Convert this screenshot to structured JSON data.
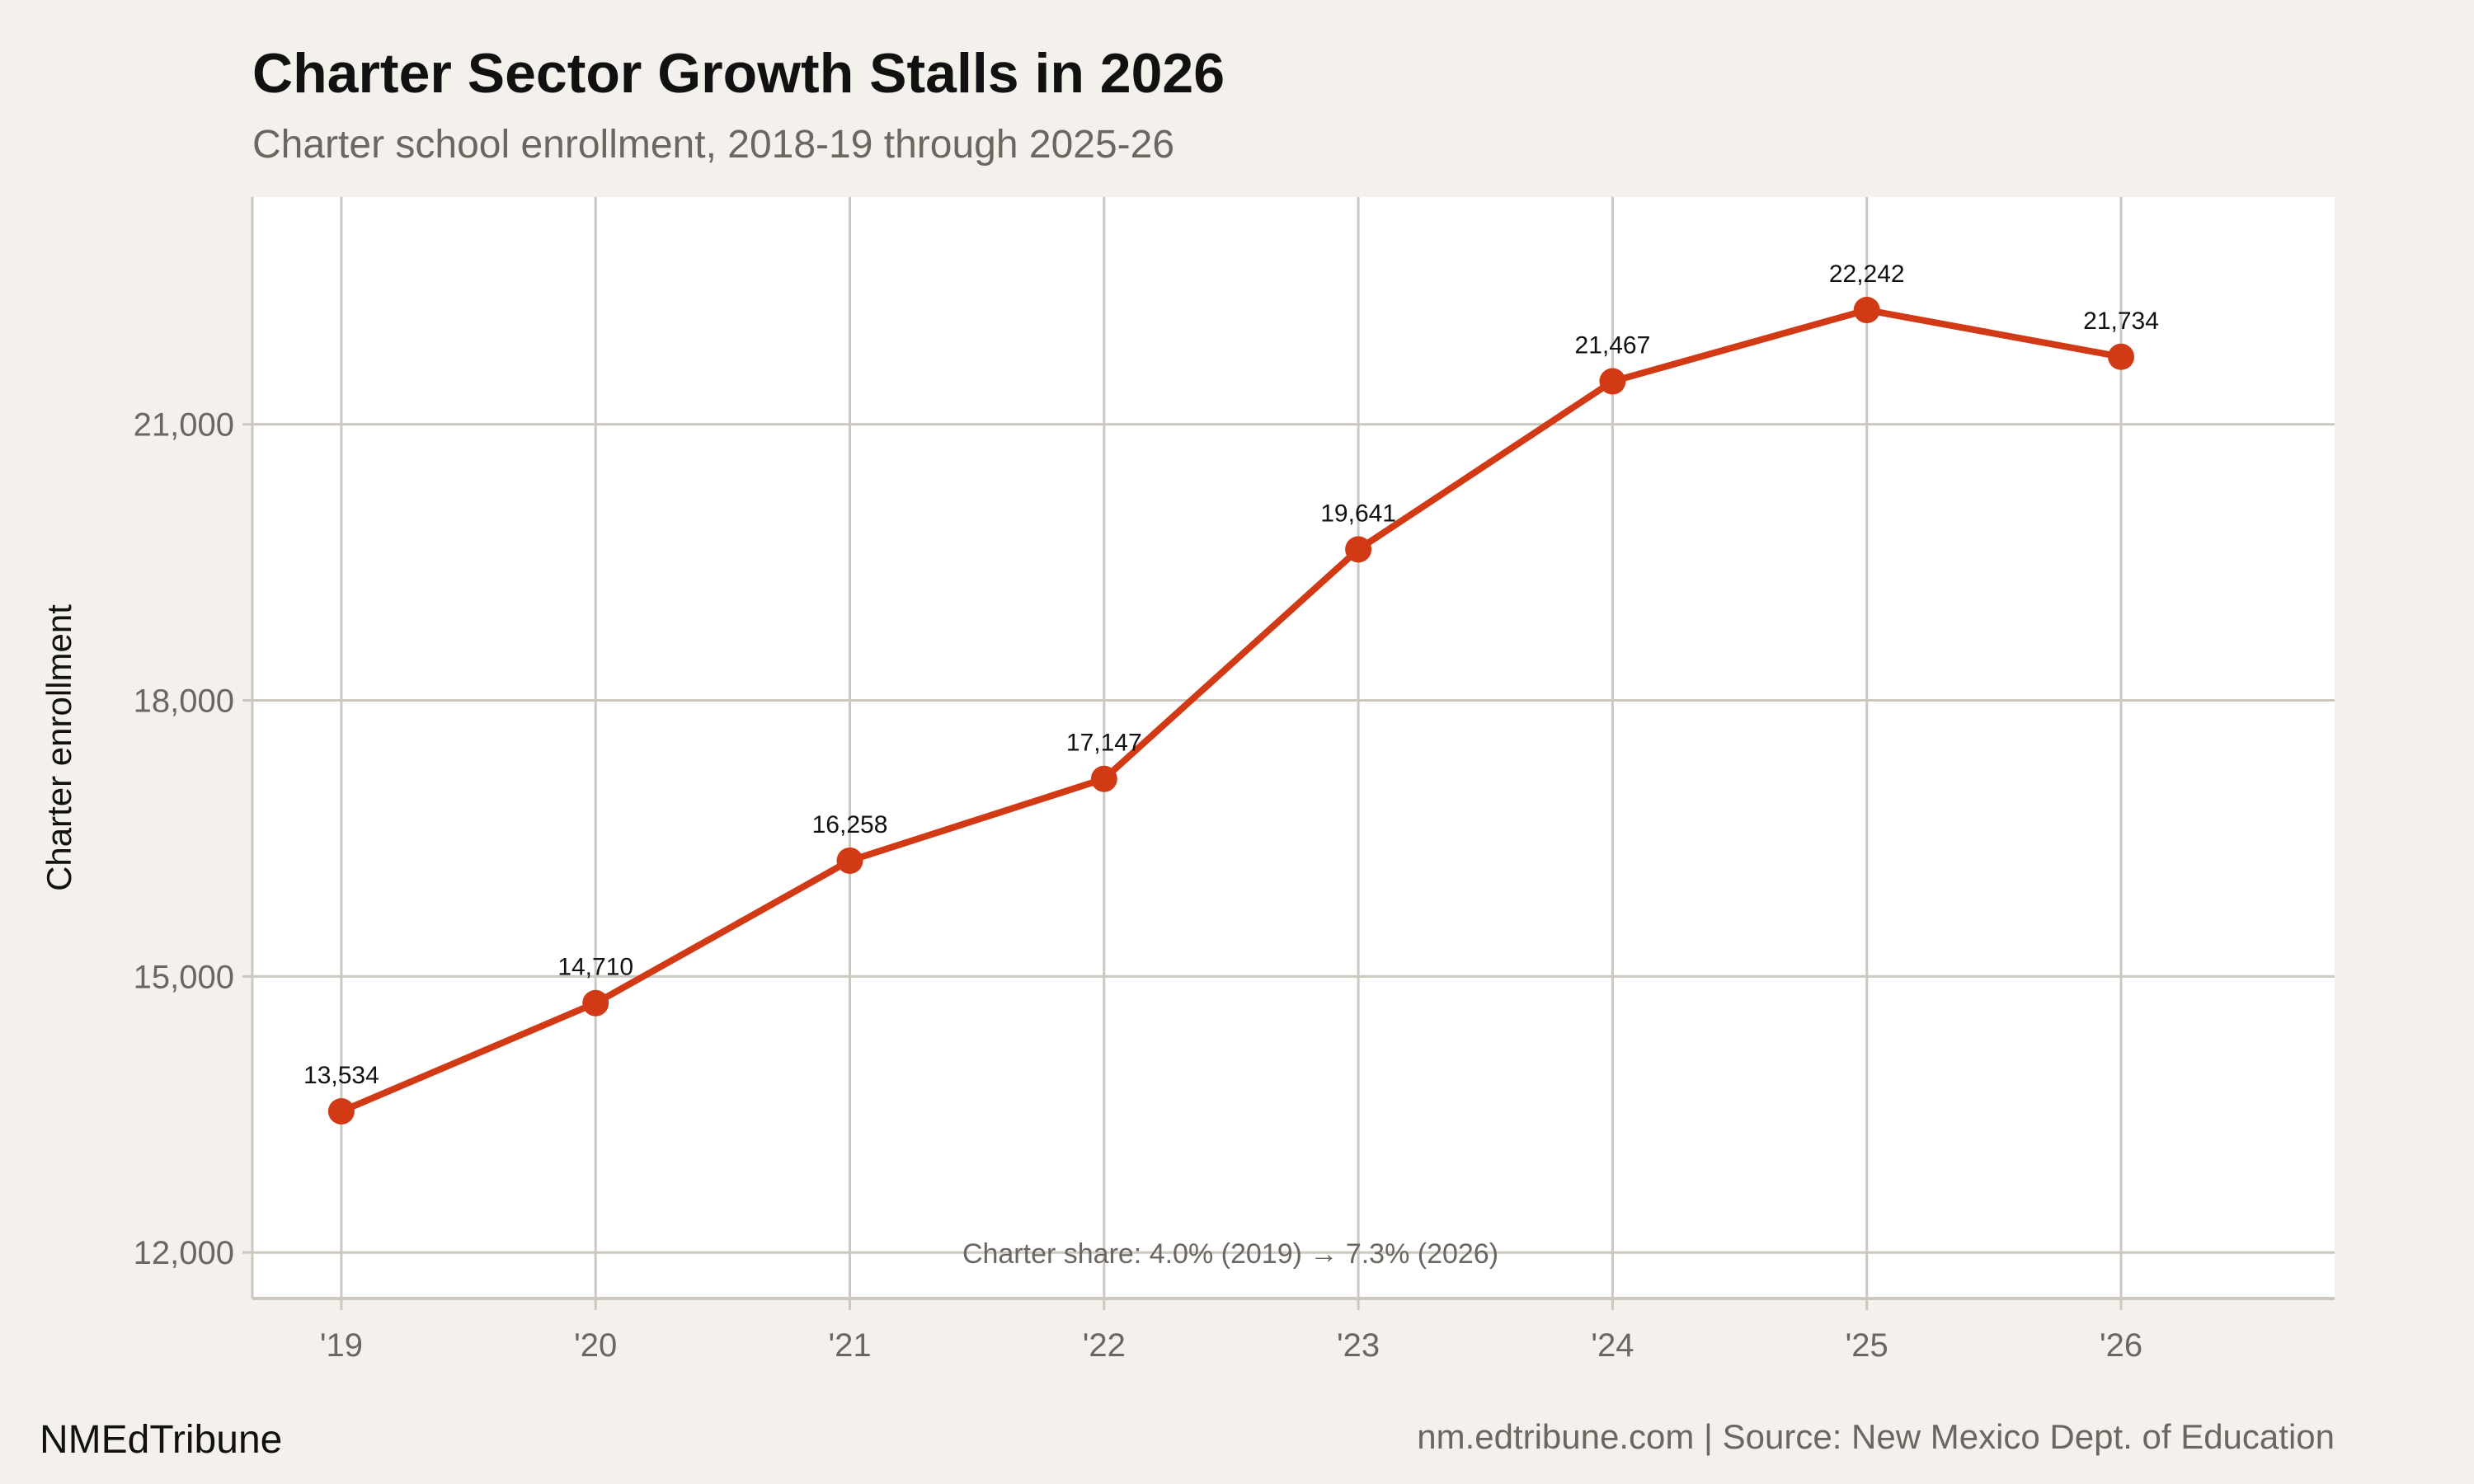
{
  "chart_data": {
    "type": "line",
    "title": "Charter Sector Growth Stalls in 2026",
    "subtitle": "Charter school enrollment, 2018-19 through 2025-26",
    "xlabel": "",
    "ylabel": "Charter enrollment",
    "categories": [
      "'19",
      "'20",
      "'21",
      "'22",
      "'23",
      "'24",
      "'25",
      "'26"
    ],
    "x": [
      2019,
      2020,
      2021,
      2022,
      2023,
      2024,
      2025,
      2026
    ],
    "values": [
      13534,
      14710,
      16258,
      17147,
      19641,
      21467,
      22242,
      21734
    ],
    "data_labels": [
      "13,534",
      "14,710",
      "16,258",
      "17,147",
      "19,641",
      "21,467",
      "22,242",
      "21,734"
    ],
    "yticks": [
      12000,
      15000,
      18000,
      21000
    ],
    "ytick_labels": [
      "12,000",
      "15,000",
      "18,000",
      "21,000"
    ],
    "xlim": [
      2018.65,
      2026.84
    ],
    "ylim": [
      11500,
      23470
    ],
    "grid": true,
    "annotation": "Charter share: 4.0% (2019) → 7.3% (2026)",
    "colors": {
      "line": "#d13a14",
      "background": "#f4f1ec",
      "panel": "#ffffff",
      "grid": "#ccc8c0"
    }
  },
  "footer": {
    "brand": "NMEdTribune",
    "source": "nm.edtribune.com | Source: New Mexico Dept. of Education"
  }
}
